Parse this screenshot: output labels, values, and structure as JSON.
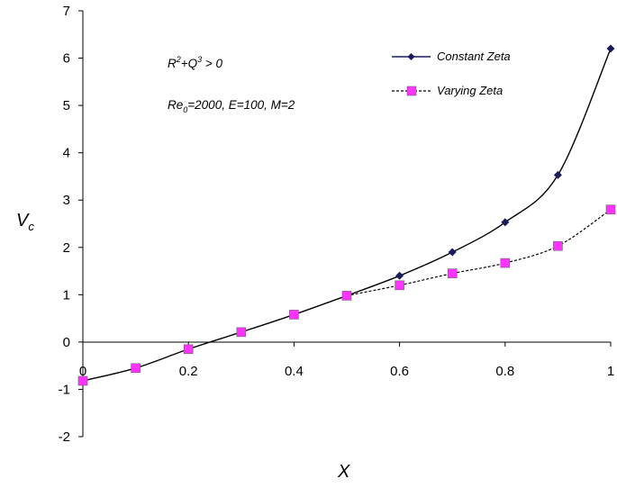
{
  "chart_data": {
    "type": "line",
    "title": "",
    "xlabel": "X",
    "ylabel_main": "V",
    "ylabel_sub": "c",
    "xlim": [
      0,
      1
    ],
    "ylim": [
      -2,
      7
    ],
    "x_ticks": [
      0,
      0.2,
      0.4,
      0.6,
      0.8,
      1
    ],
    "x_tick_labels": [
      "0",
      "0.2",
      "0.4",
      "0.6",
      "0.8",
      "1"
    ],
    "y_ticks": [
      -2,
      -1,
      0,
      1,
      2,
      3,
      4,
      5,
      6,
      7
    ],
    "y_tick_labels": [
      "-2",
      "-1",
      "0",
      "1",
      "2",
      "3",
      "4",
      "5",
      "6",
      "7"
    ],
    "grid": false,
    "legend_position": "top-right",
    "annotations": {
      "condition": {
        "r": "R",
        "r_exp": "2",
        "mid": "+Q",
        "q_exp": "3",
        "rest": " > 0"
      },
      "params": {
        "re": "Re",
        "re_sub": "0",
        "rest": "=2000, E=100, M=2"
      }
    },
    "series": [
      {
        "name": "Constant Zeta",
        "color": "#1a1a5e",
        "line_style": "solid",
        "marker": "diamond",
        "x": [
          0.5,
          0.6,
          0.7,
          0.8,
          0.9,
          1.0
        ],
        "y": [
          0.98,
          1.4,
          1.9,
          2.53,
          3.53,
          6.2
        ]
      },
      {
        "name": "Varying Zeta",
        "color": "#ff33ff",
        "line_style": "dashed",
        "marker": "square",
        "x": [
          0,
          0.1,
          0.2,
          0.3,
          0.4,
          0.5,
          0.6,
          0.7,
          0.8,
          0.9,
          1.0
        ],
        "y": [
          -0.82,
          -0.55,
          -0.15,
          0.21,
          0.58,
          0.98,
          1.2,
          1.45,
          1.67,
          2.03,
          2.8
        ]
      }
    ]
  }
}
